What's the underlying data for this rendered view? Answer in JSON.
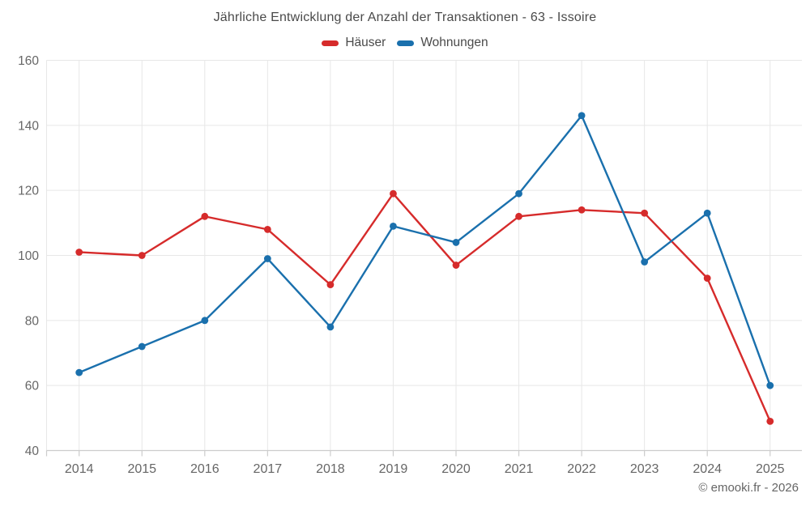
{
  "header": {
    "title": "Jährliche Entwicklung der Anzahl der Transaktionen - 63 - Issoire"
  },
  "footer": {
    "copyright": "© emooki.fr - 2026"
  },
  "chart_data": {
    "type": "line",
    "title": "Jährliche Entwicklung der Anzahl der Transaktionen - 63 - Issoire",
    "categories": [
      "2014",
      "2015",
      "2016",
      "2017",
      "2018",
      "2019",
      "2020",
      "2021",
      "2022",
      "2023",
      "2024",
      "2025"
    ],
    "series": [
      {
        "name": "Häuser",
        "color": "#d62b2b",
        "values": [
          101,
          100,
          112,
          108,
          91,
          119,
          97,
          112,
          114,
          113,
          93,
          49
        ]
      },
      {
        "name": "Wohnungen",
        "color": "#1a70ad",
        "values": [
          64,
          72,
          80,
          99,
          78,
          109,
          104,
          119,
          143,
          98,
          113,
          60
        ]
      }
    ],
    "xlabel": "",
    "ylabel": "",
    "ylim": [
      40,
      160
    ],
    "ytick_step": 20,
    "grid": true,
    "legend_position": "top",
    "marker": "circle",
    "style_colors": {
      "grid": "#e7e7e7",
      "axis": "#cccccc",
      "tick_text": "#666666",
      "title_text": "#4a4a4a"
    }
  }
}
